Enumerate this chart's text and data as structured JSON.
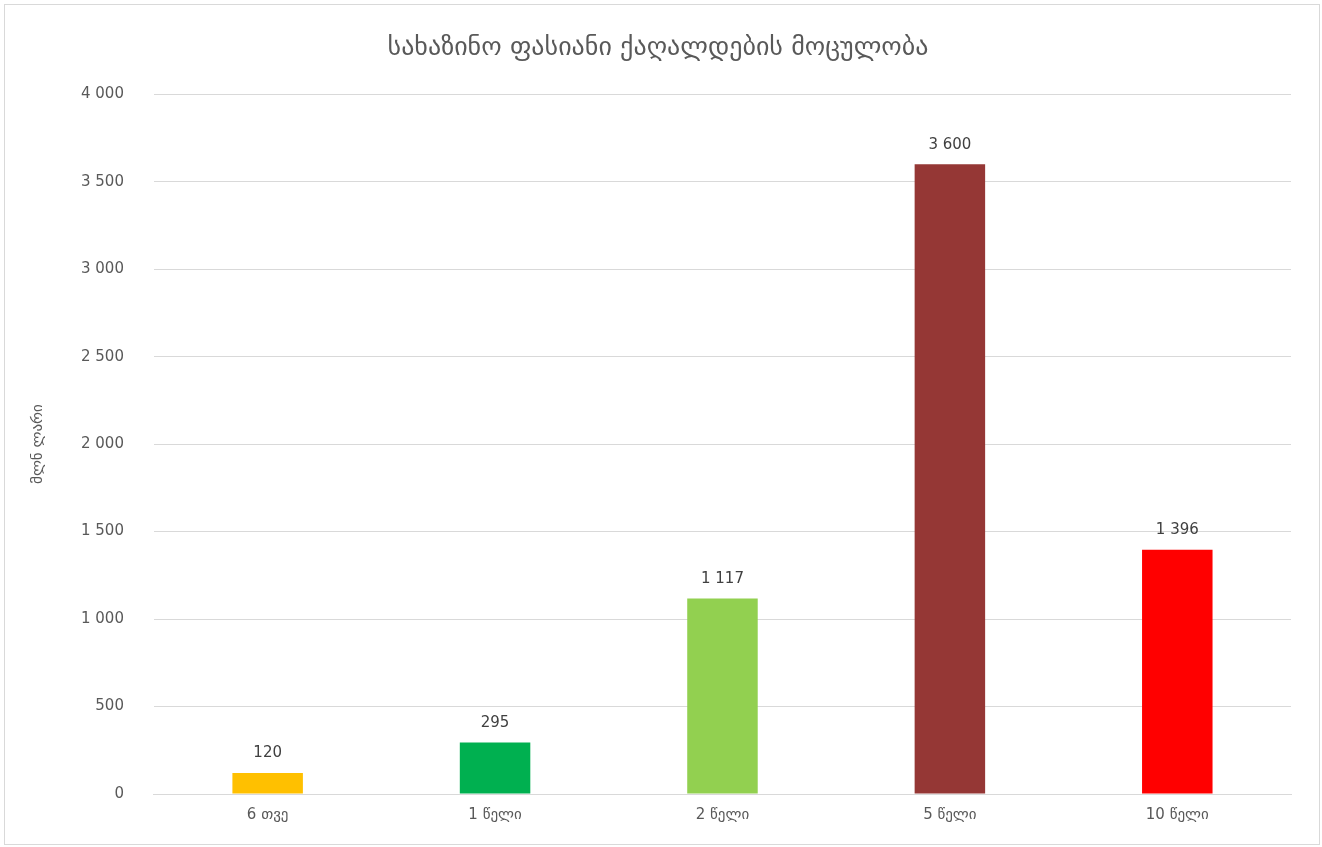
{
  "chart_data": {
    "type": "bar",
    "title": "სახაზინო ფასიანი ქაღალდების მოცულობა",
    "ylabel": "მლნ ლარი",
    "categories": [
      "6 თვე",
      "1 წელი",
      "2 წელი",
      "5 წელი",
      "10 წელი"
    ],
    "values": [
      120,
      295,
      1117,
      3600,
      1396
    ],
    "colors": [
      "#ffc000",
      "#00b050",
      "#92d050",
      "#953735",
      "#ff0000"
    ],
    "value_labels": [
      "120",
      "295",
      "1 117",
      "3 600",
      "1 396"
    ],
    "ylim": [
      0,
      4000
    ],
    "yticks": [
      {
        "value": 0,
        "label": "0"
      },
      {
        "value": 500,
        "label": "500"
      },
      {
        "value": 1000,
        "label": "1 000"
      },
      {
        "value": 1500,
        "label": "1 500"
      },
      {
        "value": 2000,
        "label": "2 000"
      },
      {
        "value": 2500,
        "label": "2 500"
      },
      {
        "value": 3000,
        "label": "3 000"
      },
      {
        "value": 3500,
        "label": "3 500"
      },
      {
        "value": 4000,
        "label": "4 000"
      }
    ],
    "grid": "y",
    "legend": false
  }
}
